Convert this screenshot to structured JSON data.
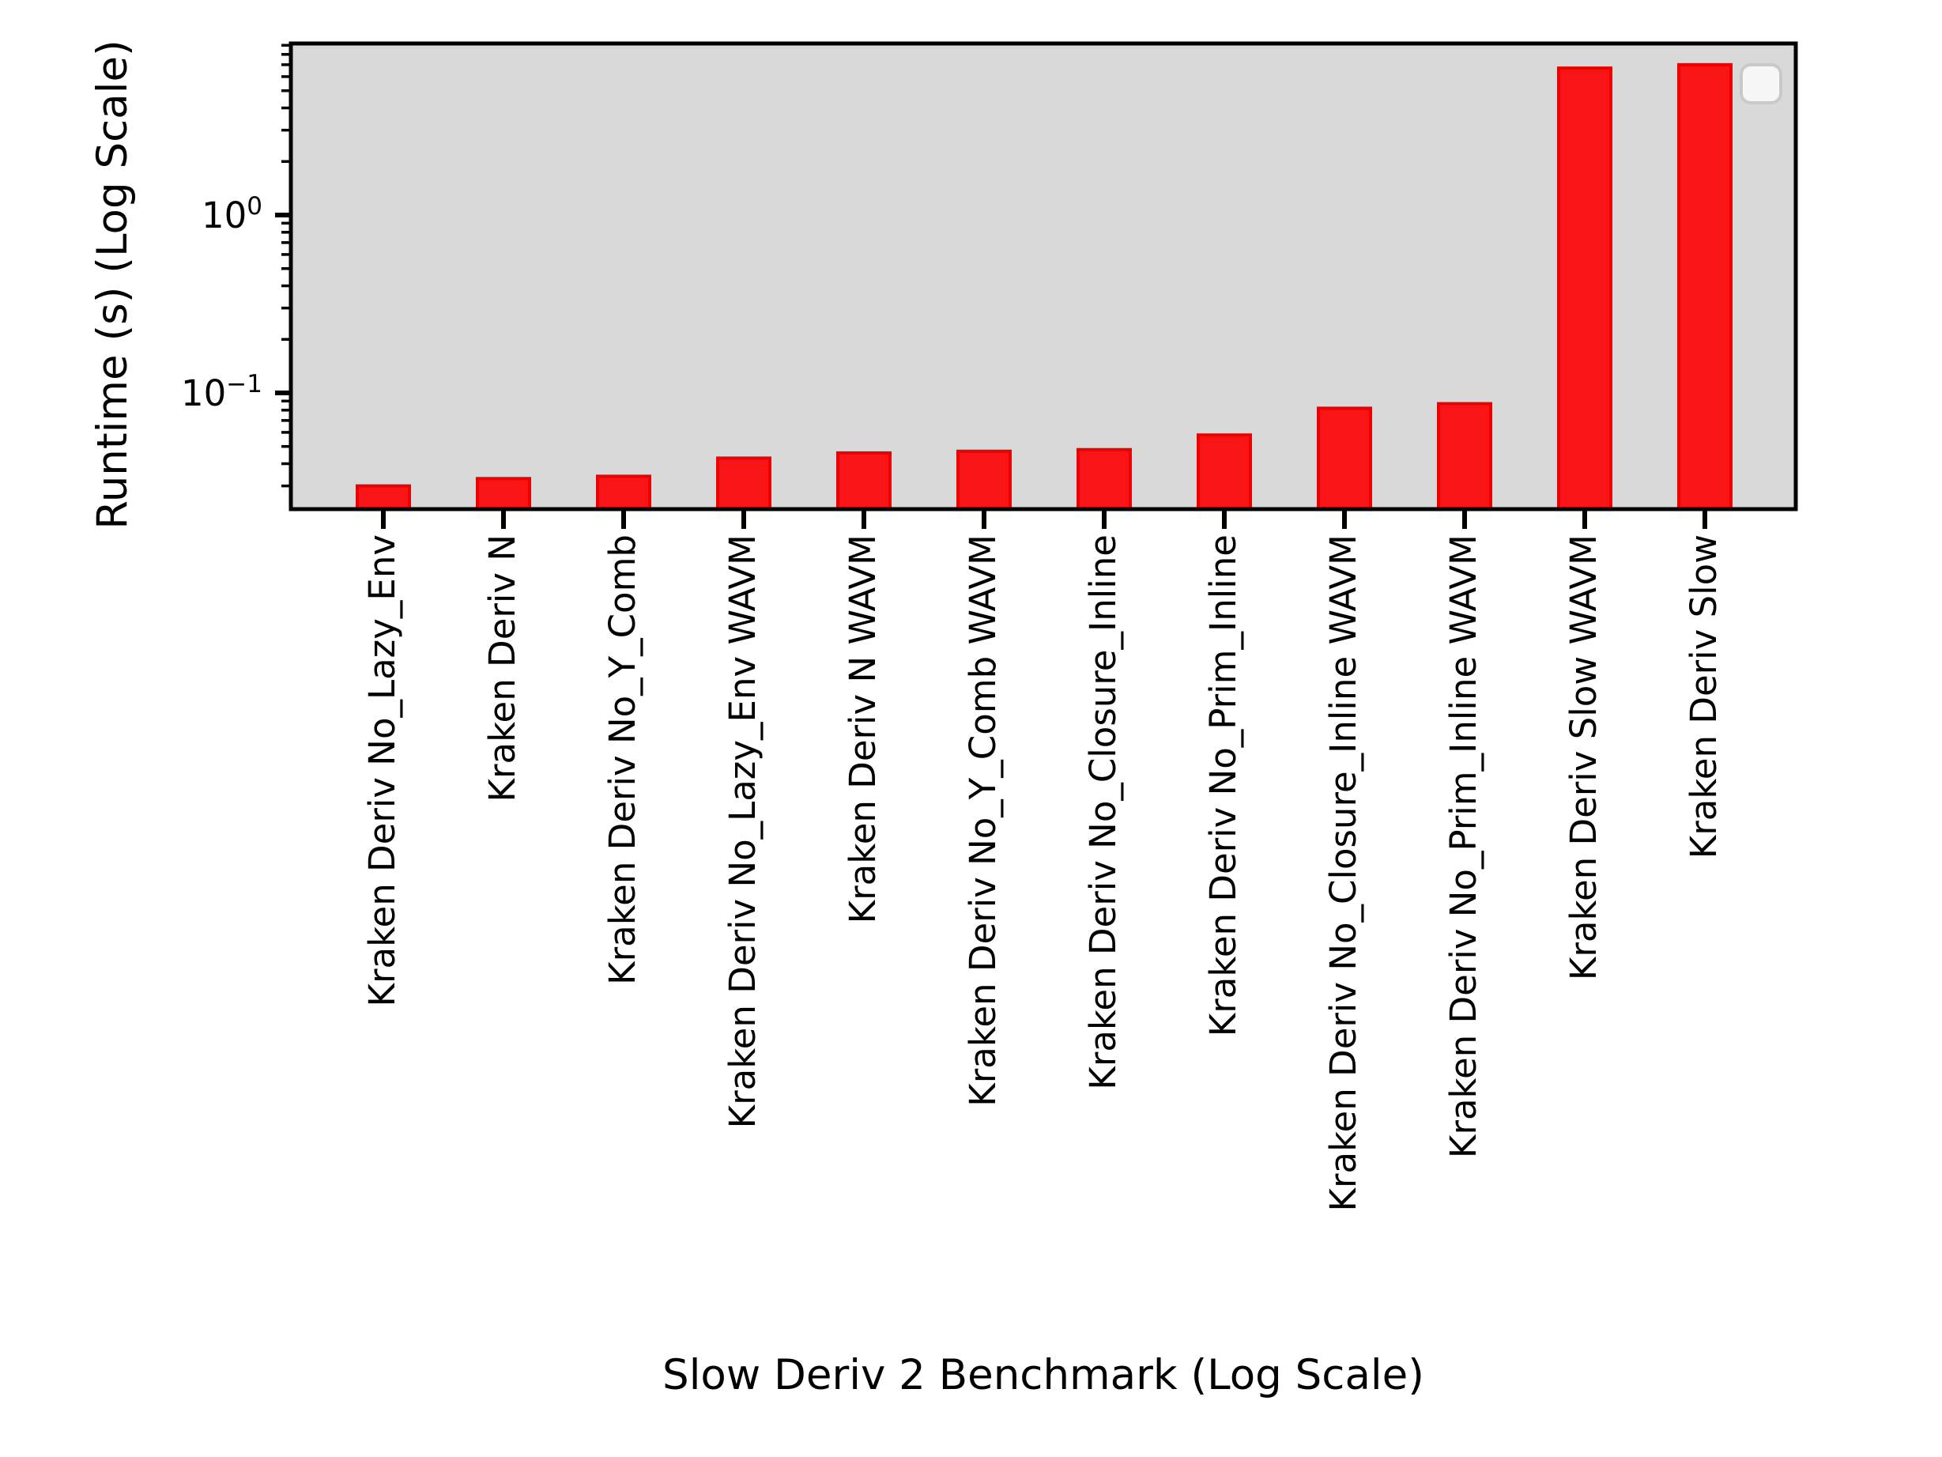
{
  "axes": {
    "ylabel": "Runtime (s) (Log Scale)",
    "xlabel": "Slow Deriv 2 Benchmark (Log Scale)",
    "ytick_labels": [
      {
        "base": "10",
        "exp": "0"
      },
      {
        "base": "10",
        "exp": "−1"
      }
    ]
  },
  "legend": {
    "visible": true,
    "position": "upper right",
    "entries": []
  },
  "chart_data": {
    "type": "bar",
    "title": "",
    "xlabel": "Slow Deriv 2 Benchmark (Log Scale)",
    "ylabel": "Runtime (s) (Log Scale)",
    "yscale": "log",
    "ylim": [
      0.022,
      9.2
    ],
    "y_major_ticks": [
      1,
      0.1
    ],
    "grid": false,
    "legend_position": "upper right",
    "plot_bg_color": "#d9d9d9",
    "bar_color": "#f91515",
    "bar_edge_color": "#ec0000",
    "categories": [
      "Kraken Deriv No_Lazy_Env",
      "Kraken Deriv N",
      "Kraken Deriv No_Y_Comb",
      "Kraken Deriv No_Lazy_Env WAVM",
      "Kraken Deriv N WAVM",
      "Kraken Deriv No_Y_Comb WAVM",
      "Kraken Deriv No_Closure_Inline",
      "Kraken Deriv No_Prim_Inline",
      "Kraken Deriv No_Closure_Inline WAVM",
      "Kraken Deriv No_Prim_Inline WAVM",
      "Kraken Deriv Slow WAVM",
      "Kraken Deriv Slow"
    ],
    "values": [
      0.03,
      0.033,
      0.034,
      0.043,
      0.046,
      0.047,
      0.048,
      0.058,
      0.082,
      0.087,
      6.7,
      7.0
    ]
  }
}
